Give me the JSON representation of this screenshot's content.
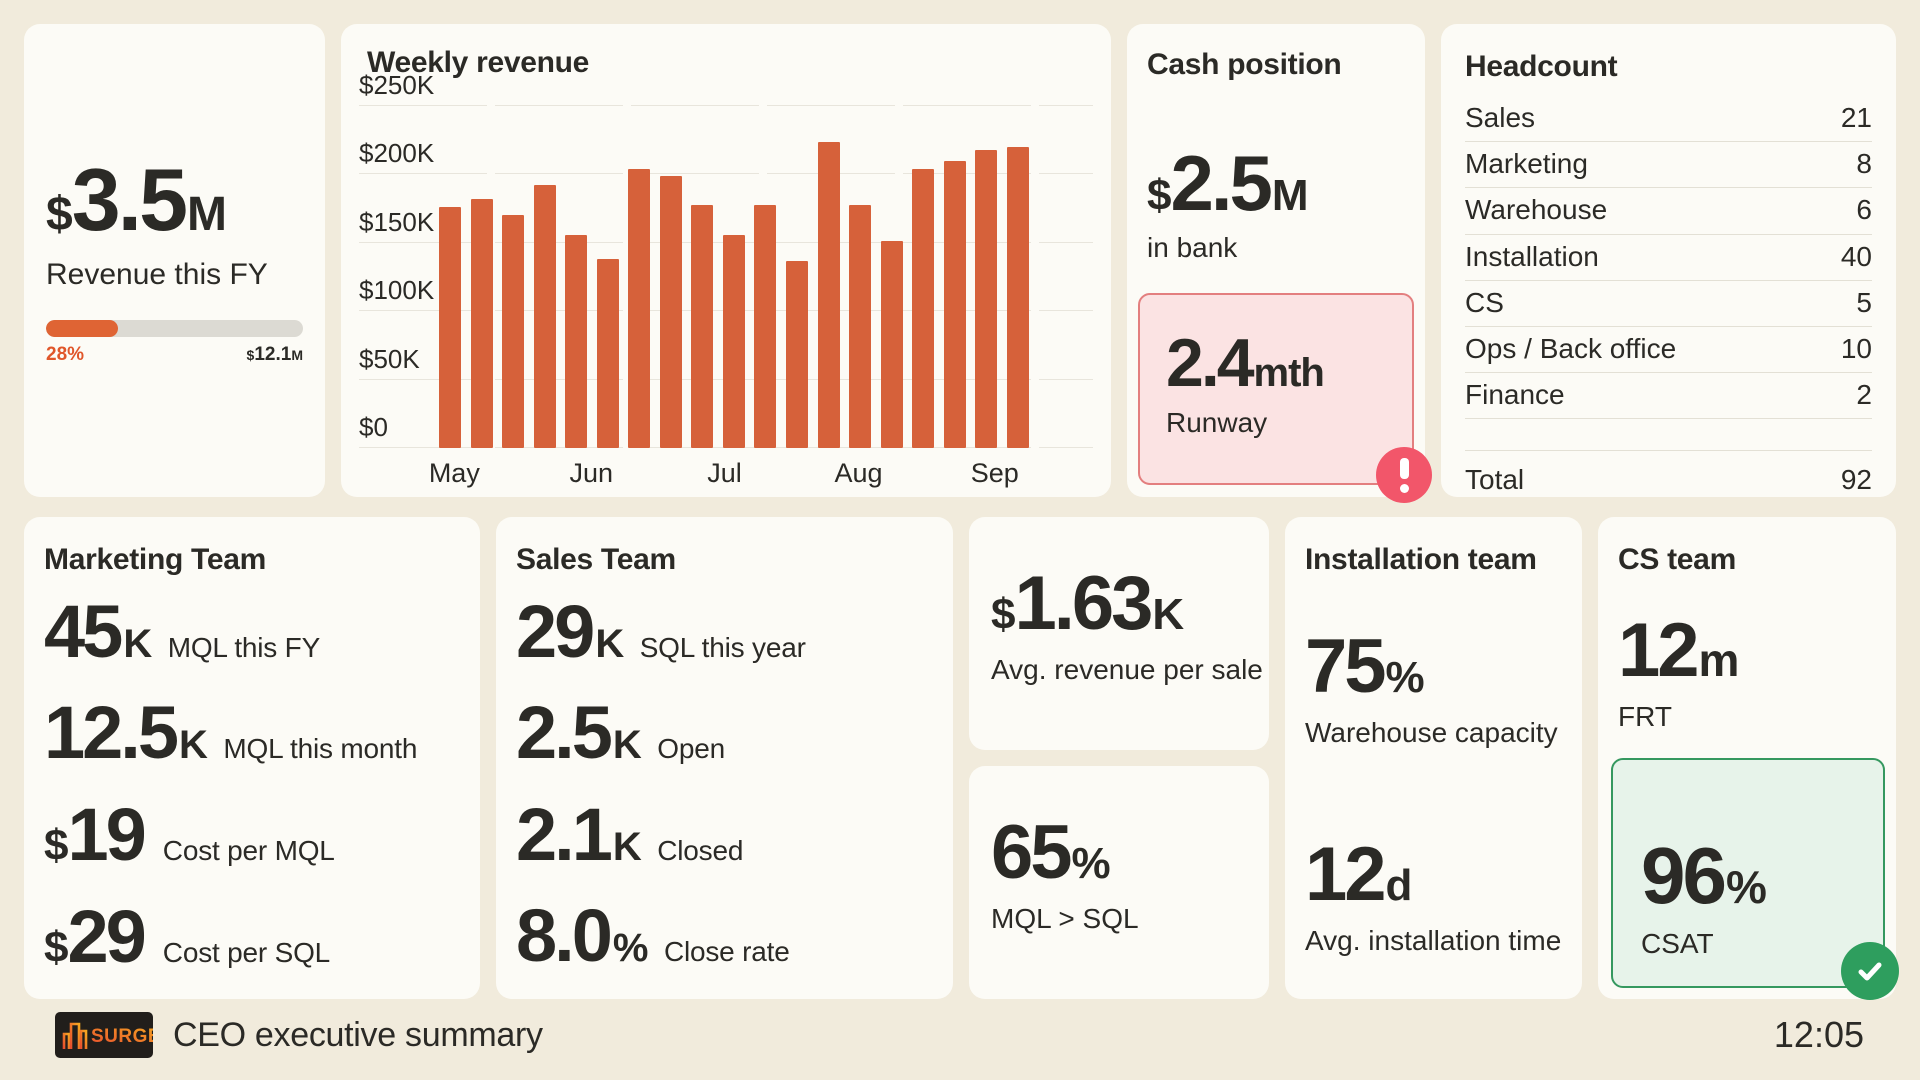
{
  "page": {
    "background": "#f1ebdc",
    "footer": {
      "brand": "SURGE",
      "title": "CEO executive summary",
      "clock": "12:05"
    }
  },
  "revenue_card": {
    "prefix": "$",
    "value": "3.5",
    "unit": "M",
    "label": "Revenue this FY",
    "progress_percent_label": "28%",
    "progress_ratio": 0.28,
    "target_prefix": "$",
    "target_value": "12.1",
    "target_unit": "M",
    "accent_color": "#df6434"
  },
  "chart_data": {
    "type": "bar",
    "title": "Weekly revenue",
    "unit": "USD thousands per week",
    "ylim": [
      0,
      250
    ],
    "grid": true,
    "bar_color": "#d6613a",
    "ytick_values": [
      0,
      50,
      100,
      150,
      200,
      250
    ],
    "ytick_labels": [
      "$0",
      "$50K",
      "$100K",
      "$150K",
      "$200K",
      "$250K"
    ],
    "values": [
      176,
      182,
      170,
      192,
      156,
      138,
      204,
      199,
      178,
      156,
      178,
      137,
      224,
      178,
      151,
      204,
      210,
      218,
      220
    ],
    "month_ticks": [
      {
        "label": "May",
        "pct": 2.6
      },
      {
        "label": "Jun",
        "pct": 25.8
      },
      {
        "label": "Jul",
        "pct": 48.4
      },
      {
        "label": "Aug",
        "pct": 71.1
      },
      {
        "label": "Sep",
        "pct": 94.2
      }
    ]
  },
  "cash_card": {
    "title": "Cash position",
    "bank": {
      "prefix": "$",
      "value": "2.5",
      "unit": "M",
      "label": "in bank"
    },
    "runway": {
      "value": "2.4",
      "unit": "mth",
      "label": "Runway"
    },
    "alert_icon": "exclamation-badge",
    "alert_color": "#f2566a"
  },
  "headcount_card": {
    "title": "Headcount",
    "rows": [
      {
        "label": "Sales",
        "value": 21
      },
      {
        "label": "Marketing",
        "value": 8
      },
      {
        "label": "Warehouse",
        "value": 6
      },
      {
        "label": "Installation",
        "value": 40
      },
      {
        "label": "CS",
        "value": 5
      },
      {
        "label": "Ops / Back office",
        "value": 10
      },
      {
        "label": "Finance",
        "value": 2
      }
    ],
    "total_label": "Total",
    "total_value": 92
  },
  "marketing_card": {
    "title": "Marketing Team",
    "metrics": [
      {
        "prefix": "",
        "value": "45",
        "unit": "K",
        "label": "MQL this FY"
      },
      {
        "prefix": "",
        "value": "12.5",
        "unit": "K",
        "label": "MQL this month"
      },
      {
        "prefix": "$",
        "value": "19",
        "unit": "",
        "label": "Cost per MQL"
      },
      {
        "prefix": "$",
        "value": "29",
        "unit": "",
        "label": "Cost per SQL"
      }
    ]
  },
  "sales_card": {
    "title": "Sales Team",
    "metrics": [
      {
        "prefix": "",
        "value": "29",
        "unit": "K",
        "label": "SQL this year"
      },
      {
        "prefix": "",
        "value": "2.5",
        "unit": "K",
        "label": "Open"
      },
      {
        "prefix": "",
        "value": "2.1",
        "unit": "K",
        "label": "Closed"
      },
      {
        "prefix": "",
        "value": "8.0",
        "unit": "%",
        "label": "Close rate"
      }
    ]
  },
  "avg_revenue_card": {
    "prefix": "$",
    "value": "1.63",
    "unit": "K",
    "label": "Avg. revenue per sale"
  },
  "mql_sql_card": {
    "value": "65",
    "unit": "%",
    "label": "MQL > SQL"
  },
  "installation_card": {
    "title": "Installation team",
    "metrics": [
      {
        "value": "75",
        "unit": "%",
        "label": "Warehouse capacity"
      },
      {
        "value": "12",
        "unit": "d",
        "label": "Avg. installation time"
      }
    ]
  },
  "cs_card": {
    "title": "CS team",
    "frt": {
      "value": "12",
      "unit": "m",
      "label": "FRT"
    },
    "csat": {
      "value": "96",
      "unit": "%",
      "label": "CSAT"
    },
    "ok_icon": "check-badge",
    "ok_color": "#2e9e5e"
  }
}
